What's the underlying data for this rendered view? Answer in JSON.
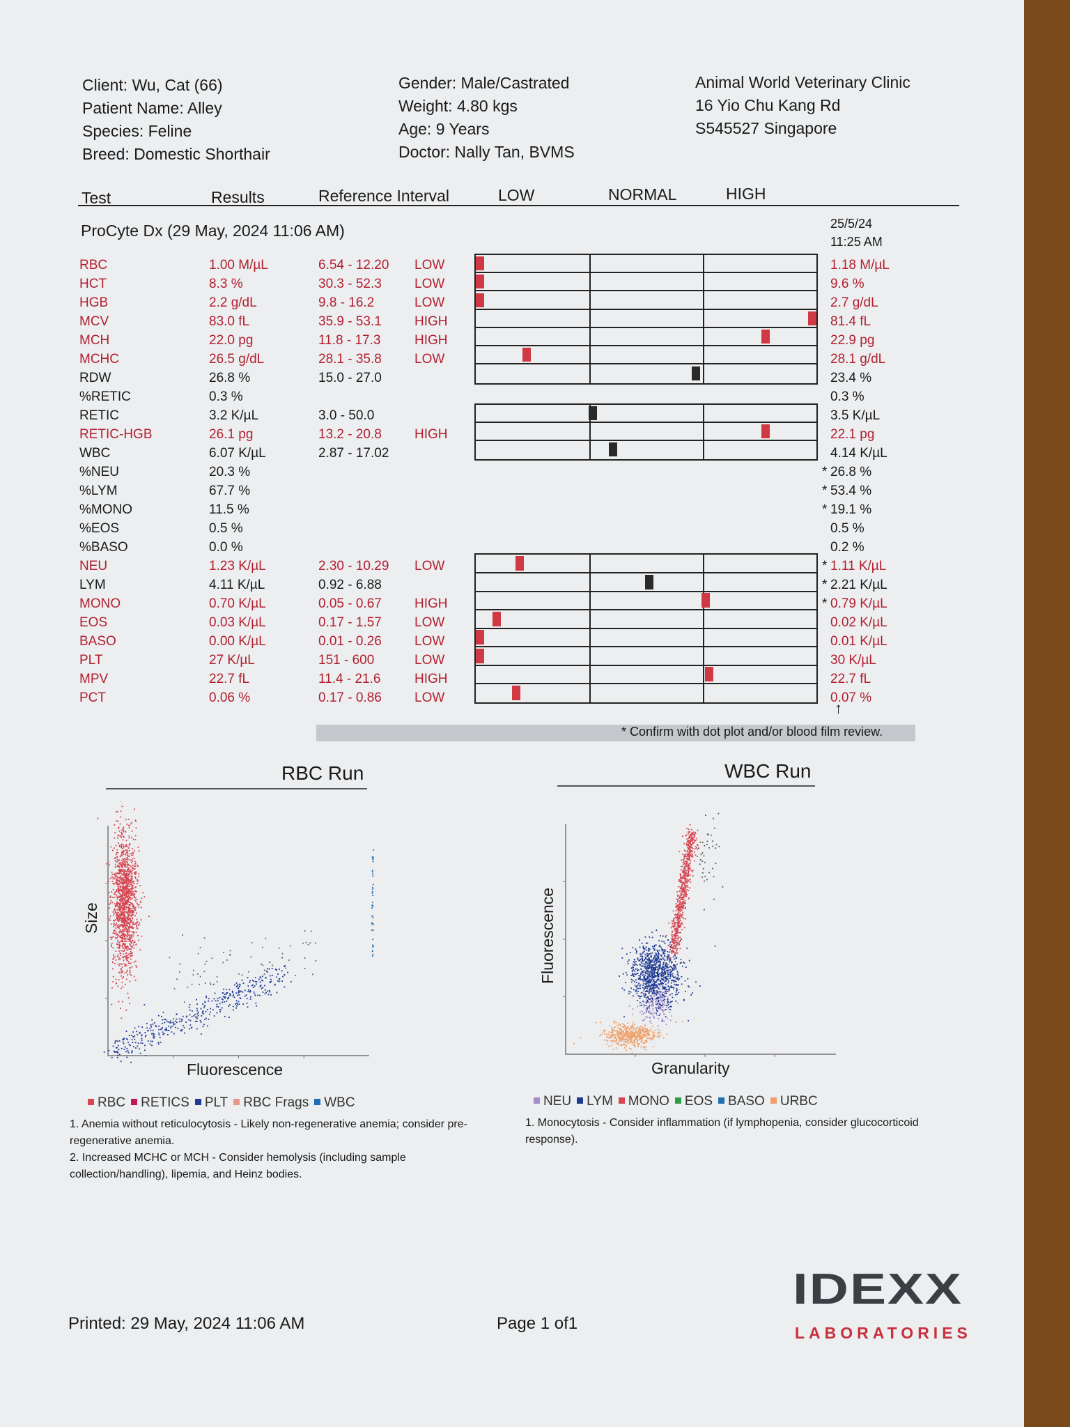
{
  "header": {
    "client": "Client: Wu, Cat (66)",
    "patient": "Patient Name: Alley",
    "species": "Species: Feline",
    "breed": "Breed: Domestic Shorthair",
    "gender": "Gender: Male/Castrated",
    "weight": "Weight: 4.80 kgs",
    "age": "Age: 9 Years",
    "doctor": "Doctor: Nally Tan, BVMS",
    "clinic_name": "Animal World Veterinary Clinic",
    "clinic_address": "16 Yio Chu Kang Rd",
    "clinic_city": "S545527 Singapore"
  },
  "columns": {
    "test": "Test",
    "results": "Results",
    "reference": "Reference Interval",
    "low": "LOW",
    "normal": "NORMAL",
    "high": "HIGH"
  },
  "run": {
    "title": "ProCyte Dx (29 May, 2024 11:06 AM)",
    "prev_date": "25/5/24",
    "prev_time": "11:25 AM"
  },
  "rows": [
    {
      "test": "RBC",
      "result": "1.00 M/µL",
      "ref": "6.54 - 12.20",
      "flag": "LOW",
      "prev": "1.18 M/µL",
      "red": true,
      "group": 0,
      "pos": 0.0,
      "mark": "red"
    },
    {
      "test": "HCT",
      "result": "8.3 %",
      "ref": "30.3 - 52.3",
      "flag": "LOW",
      "prev": "9.6 %",
      "red": true,
      "group": 0,
      "pos": 0.0,
      "mark": "red"
    },
    {
      "test": "HGB",
      "result": "2.2 g/dL",
      "ref": "9.8 - 16.2",
      "flag": "LOW",
      "prev": "2.7 g/dL",
      "red": true,
      "group": 0,
      "pos": 0.0,
      "mark": "red"
    },
    {
      "test": "MCV",
      "result": "83.0 fL",
      "ref": "35.9 - 53.1",
      "flag": "HIGH",
      "prev": "81.4 fL",
      "red": true,
      "group": 0,
      "pos": 1.0,
      "mark": "red"
    },
    {
      "test": "MCH",
      "result": "22.0 pg",
      "ref": "11.8 - 17.3",
      "flag": "HIGH",
      "prev": "22.9 pg",
      "red": true,
      "group": 0,
      "pos": 0.86,
      "mark": "red"
    },
    {
      "test": "MCHC",
      "result": "26.5 g/dL",
      "ref": "28.1 - 35.8",
      "flag": "LOW",
      "prev": "28.1 g/dL",
      "red": true,
      "group": 0,
      "pos": 0.14,
      "mark": "red"
    },
    {
      "test": "RDW",
      "result": "26.8 %",
      "ref": "15.0 - 27.0",
      "flag": "",
      "prev": "23.4 %",
      "red": false,
      "group": 0,
      "pos": 0.65,
      "mark": "black"
    },
    {
      "test": "%RETIC",
      "result": "0.3 %",
      "ref": "",
      "flag": "",
      "prev": "0.3 %",
      "red": false,
      "group": -1
    },
    {
      "test": "RETIC",
      "result": "3.2 K/µL",
      "ref": "3.0 - 50.0",
      "flag": "",
      "prev": "3.5 K/µL",
      "red": false,
      "group": 1,
      "pos": 0.34,
      "mark": "black"
    },
    {
      "test": "RETIC-HGB",
      "result": "26.1 pg",
      "ref": "13.2 - 20.8",
      "flag": "HIGH",
      "prev": "22.1 pg",
      "red": true,
      "group": 1,
      "pos": 0.86,
      "mark": "red"
    },
    {
      "test": "WBC",
      "result": "6.07 K/µL",
      "ref": "2.87 - 17.02",
      "flag": "",
      "prev": "4.14 K/µL",
      "red": false,
      "group": 1,
      "pos": 0.4,
      "mark": "black"
    },
    {
      "test": "%NEU",
      "result": "20.3 %",
      "ref": "",
      "flag": "",
      "prev": "26.8 %",
      "star": "*",
      "red": false,
      "group": -1
    },
    {
      "test": "%LYM",
      "result": "67.7 %",
      "ref": "",
      "flag": "",
      "prev": "53.4 %",
      "star": "*",
      "red": false,
      "group": -1
    },
    {
      "test": "%MONO",
      "result": "11.5 %",
      "ref": "",
      "flag": "",
      "prev": "19.1 %",
      "star": "*",
      "red": false,
      "group": -1
    },
    {
      "test": "%EOS",
      "result": "0.5 %",
      "ref": "",
      "flag": "",
      "prev": "0.5 %",
      "red": false,
      "group": -1
    },
    {
      "test": "%BASO",
      "result": "0.0 %",
      "ref": "",
      "flag": "",
      "prev": "0.2 %",
      "red": false,
      "group": -1
    },
    {
      "test": "NEU",
      "result": "1.23 K/µL",
      "ref": "2.30 - 10.29",
      "flag": "LOW",
      "prev": "1.11 K/µL",
      "star": "*",
      "red": true,
      "group": 2,
      "pos": 0.12,
      "mark": "red"
    },
    {
      "test": "LYM",
      "result": "4.11 K/µL",
      "ref": "0.92 - 6.88",
      "flag": "",
      "prev": "2.21 K/µL",
      "star": "*",
      "red": false,
      "group": 2,
      "pos": 0.51,
      "mark": "black"
    },
    {
      "test": "MONO",
      "result": "0.70 K/µL",
      "ref": "0.05 - 0.67",
      "flag": "HIGH",
      "prev": "0.79 K/µL",
      "star": "*",
      "red": true,
      "group": 2,
      "pos": 0.68,
      "mark": "red"
    },
    {
      "test": "EOS",
      "result": "0.03 K/µL",
      "ref": "0.17 - 1.57",
      "flag": "LOW",
      "prev": "0.02 K/µL",
      "red": true,
      "group": 2,
      "pos": 0.05,
      "mark": "red"
    },
    {
      "test": "BASO",
      "result": "0.00 K/µL",
      "ref": "0.01 - 0.26",
      "flag": "LOW",
      "prev": "0.01 K/µL",
      "red": true,
      "group": 2,
      "pos": 0.0,
      "mark": "red"
    },
    {
      "test": "PLT",
      "result": "27 K/µL",
      "ref": "151 - 600",
      "flag": "LOW",
      "prev": "30 K/µL",
      "red": true,
      "group": 2,
      "pos": 0.0,
      "mark": "red"
    },
    {
      "test": "MPV",
      "result": "22.7 fL",
      "ref": "11.4 - 21.6",
      "flag": "HIGH",
      "prev": "22.7 fL",
      "red": true,
      "group": 2,
      "pos": 0.69,
      "mark": "red"
    },
    {
      "test": "PCT",
      "result": "0.06 %",
      "ref": "0.17 - 0.86",
      "flag": "LOW",
      "prev": "0.07 %",
      "red": true,
      "group": 2,
      "pos": 0.11,
      "mark": "red"
    }
  ],
  "confirm_note": "* Confirm with dot plot and/or blood film review.",
  "rbc_chart": {
    "title": "RBC Run",
    "xlabel": "Fluorescence",
    "ylabel": "Size",
    "legend": [
      {
        "name": "RBC",
        "color": "#d64550"
      },
      {
        "name": "RETICS",
        "color": "#c2185b"
      },
      {
        "name": "PLT",
        "color": "#1f3a93"
      },
      {
        "name": "RBC Frags",
        "color": "#e8958e"
      },
      {
        "name": "WBC",
        "color": "#1f6fb5"
      }
    ],
    "notes": [
      "1. Anemia without reticulocytosis - Likely non-regenerative anemia; consider pre-regenerative anemia.",
      "2. Increased MCHC or MCH - Consider hemolysis (including sample collection/handling), lipemia, and Heinz bodies."
    ]
  },
  "wbc_chart": {
    "title": "WBC Run",
    "xlabel": "Granularity",
    "ylabel": "Fluorescence",
    "legend": [
      {
        "name": "NEU",
        "color": "#a98bc9"
      },
      {
        "name": "LYM",
        "color": "#1f3a93"
      },
      {
        "name": "MONO",
        "color": "#d64550"
      },
      {
        "name": "EOS",
        "color": "#2e9d4a"
      },
      {
        "name": "BASO",
        "color": "#1f6fb5"
      },
      {
        "name": "URBC",
        "color": "#f0a06a"
      }
    ],
    "notes": [
      "1. Monocytosis - Consider inflammation (if lymphopenia, consider glucocorticoid response)."
    ]
  },
  "footer": {
    "printed": "Printed: 29 May, 2024 11:06 AM",
    "page": "Page 1 of1",
    "logo_top": "IDEXX",
    "logo_bottom": "LABORATORIES"
  }
}
